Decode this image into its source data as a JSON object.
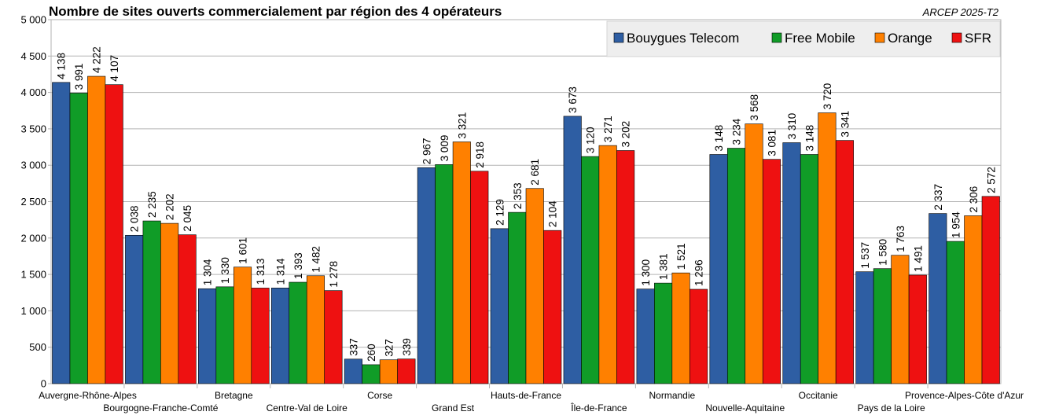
{
  "chart_data": {
    "type": "bar",
    "title": "Nombre de sites ouverts commercialement par région des 4 opérateurs",
    "source": "ARCEP 2025-T2",
    "xlabel": "",
    "ylabel": "",
    "ylim": [
      0,
      5000
    ],
    "ytick_step": 500,
    "yticks": [
      "0",
      "500",
      "1 000",
      "1 500",
      "2 000",
      "2 500",
      "3 000",
      "3 500",
      "4 000",
      "4 500",
      "5 000"
    ],
    "grid": true,
    "legend_position": "top-right",
    "categories": [
      "Auvergne-Rhône-Alpes",
      "Bourgogne-Franche-Comté",
      "Bretagne",
      "Centre-Val de Loire",
      "Corse",
      "Grand Est",
      "Hauts-de-France",
      "Île-de-France",
      "Normandie",
      "Nouvelle-Aquitaine",
      "Occitanie",
      "Pays de la Loire",
      "Provence-Alpes-Côte d'Azur"
    ],
    "series": [
      {
        "name": "Bouygues Telecom",
        "color": "#2e5ea3",
        "values": [
          4138,
          2038,
          1304,
          1314,
          337,
          2967,
          2129,
          3673,
          1300,
          3148,
          3310,
          1537,
          2337
        ],
        "labels": [
          "4 138",
          "2 038",
          "1 304",
          "1 314",
          "337",
          "2 967",
          "2 129",
          "3 673",
          "1 300",
          "3 148",
          "3 310",
          "1 537",
          "2 337"
        ]
      },
      {
        "name": "Free Mobile",
        "color": "#109c27",
        "values": [
          3991,
          2235,
          1330,
          1393,
          260,
          3009,
          2353,
          3120,
          1381,
          3234,
          3148,
          1580,
          1954
        ],
        "labels": [
          "3 991",
          "2 235",
          "1 330",
          "1 393",
          "260",
          "3 009",
          "2 353",
          "3 120",
          "1 381",
          "3 234",
          "3 148",
          "1 580",
          "1 954"
        ]
      },
      {
        "name": "Orange",
        "color": "#ff8000",
        "values": [
          4222,
          2202,
          1601,
          1482,
          327,
          3321,
          2681,
          3271,
          1521,
          3568,
          3720,
          1763,
          2306
        ],
        "labels": [
          "4 222",
          "2 202",
          "1 601",
          "1 482",
          "327",
          "3 321",
          "2 681",
          "3 271",
          "1 521",
          "3 568",
          "3 720",
          "1 763",
          "2 306"
        ]
      },
      {
        "name": "SFR",
        "color": "#ee1111",
        "values": [
          4107,
          2045,
          1313,
          1278,
          339,
          2918,
          2104,
          3202,
          1296,
          3081,
          3341,
          1491,
          2572
        ],
        "labels": [
          "4 107",
          "2 045",
          "1 313",
          "1 278",
          "339",
          "2 918",
          "2 104",
          "3 202",
          "1 296",
          "3 081",
          "3 341",
          "1 491",
          "2 572"
        ]
      }
    ]
  }
}
